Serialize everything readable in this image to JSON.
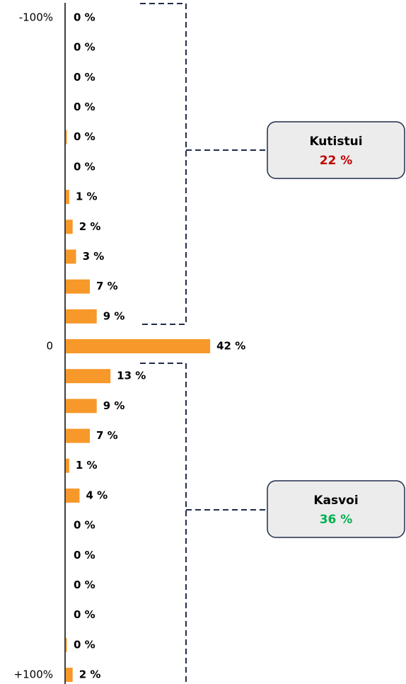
{
  "chart_data": {
    "type": "hbar",
    "categories": [
      "-100%",
      null,
      null,
      null,
      null,
      null,
      null,
      null,
      null,
      null,
      null,
      "0",
      null,
      null,
      null,
      null,
      null,
      null,
      null,
      null,
      null,
      null,
      "+100%"
    ],
    "values": [
      0,
      0,
      0,
      0,
      0.3,
      0,
      1,
      2,
      3,
      7,
      9,
      42,
      13,
      9,
      7,
      1,
      4,
      0,
      0,
      0,
      0,
      0.3,
      2
    ],
    "value_labels": [
      "0 %",
      "0 %",
      "0 %",
      "0 %",
      "0 %",
      "0 %",
      "1 %",
      "2 %",
      "3 %",
      "7 %",
      "9 %",
      "42 %",
      "13 %",
      "9 %",
      "7 %",
      "1 %",
      "4 %",
      "0 %",
      "0 %",
      "0 %",
      "0 %",
      "0 %",
      "2 %"
    ],
    "color": "#f7982a",
    "xlim": [
      0,
      50
    ],
    "annotations": [
      {
        "label": "Kutistui",
        "text": "22 %",
        "color": "#c00000"
      },
      {
        "label": "Kasvoi",
        "text": "36 %",
        "color": "#00b050"
      }
    ]
  }
}
